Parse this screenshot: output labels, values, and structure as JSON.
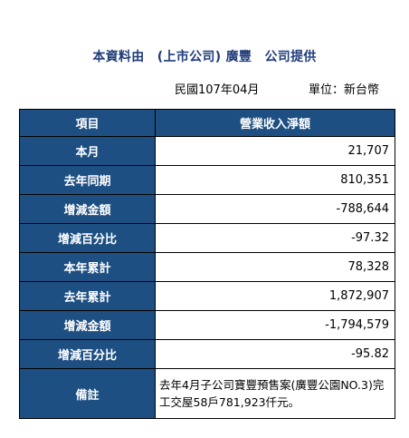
{
  "header": {
    "title": "本資料由　(上市公司) 廣豐　公司提供",
    "period": "民國107年04月",
    "unit": "單位：新台幣"
  },
  "table": {
    "columns": [
      "項目",
      "營業收入淨額"
    ],
    "rows": [
      {
        "label": "本月",
        "value": "21,707"
      },
      {
        "label": "去年同期",
        "value": "810,351"
      },
      {
        "label": "增減金額",
        "value": "-788,644"
      },
      {
        "label": "增減百分比",
        "value": "-97.32"
      },
      {
        "label": "本年累計",
        "value": "78,328"
      },
      {
        "label": "去年累計",
        "value": "1,872,907"
      },
      {
        "label": "增減金額",
        "value": "-1,794,579"
      },
      {
        "label": "增減百分比",
        "value": "-95.82"
      }
    ],
    "note": {
      "label": "備註",
      "text": "去年4月子公司寶豐預售案(廣豐公園NO.3)完工交屋58戶781,923仟元。"
    }
  }
}
